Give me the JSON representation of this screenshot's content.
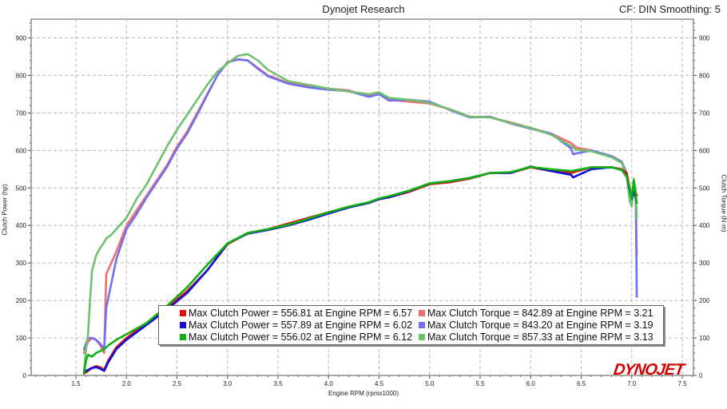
{
  "header": {
    "title": "Dynojet Research",
    "correction": "CF: DIN Smoothing: 5"
  },
  "logo_text": "DYNOJET",
  "chart_data": {
    "type": "line",
    "title": "Dynojet Research",
    "xlabel": "Engine RPM (rpmx1000)",
    "ylabel": "Clutch Power (hp)",
    "ylabel_right": "Clutch Torque (N·m)",
    "xlim": [
      1.0,
      7.65
    ],
    "ylim": [
      0,
      950
    ],
    "x_ticks": [
      "1.5",
      "2.0",
      "2.5",
      "3.0",
      "3.5",
      "4.0",
      "4.5",
      "5.0",
      "5.5",
      "6.0",
      "6.5",
      "7.0",
      "7.5"
    ],
    "y_ticks": [
      "0",
      "100",
      "200",
      "300",
      "400",
      "500",
      "600",
      "700",
      "800",
      "900"
    ],
    "y_ticks_right": [
      "0",
      "100",
      "200",
      "300",
      "400",
      "500",
      "600",
      "700",
      "800",
      "900"
    ],
    "grid": true,
    "legend_position": "bottom-center",
    "series": [
      {
        "name": "Max Clutch Power",
        "color": "#e01010",
        "kind": "power",
        "x": [
          1.58,
          1.62,
          1.66,
          1.7,
          1.74,
          1.78,
          1.82,
          1.9,
          2.0,
          2.2,
          2.4,
          2.6,
          2.8,
          3.0,
          3.2,
          3.4,
          3.6,
          3.8,
          4.0,
          4.2,
          4.4,
          4.5,
          4.6,
          4.8,
          5.0,
          5.2,
          5.4,
          5.6,
          5.8,
          6.0,
          6.2,
          6.4,
          6.6,
          6.8,
          6.9,
          6.95,
          6.98,
          7.0,
          7.02,
          7.05
        ],
        "y": [
          5,
          12,
          20,
          25,
          22,
          15,
          40,
          75,
          100,
          140,
          180,
          225,
          280,
          350,
          380,
          390,
          405,
          420,
          435,
          450,
          460,
          470,
          475,
          490,
          510,
          515,
          525,
          540,
          540,
          555,
          545,
          540,
          555,
          555,
          550,
          540,
          500,
          475,
          500,
          480
        ]
      },
      {
        "name": "Max Clutch Power",
        "color": "#1010d8",
        "kind": "power",
        "x": [
          1.58,
          1.62,
          1.66,
          1.7,
          1.74,
          1.78,
          1.82,
          1.9,
          2.0,
          2.2,
          2.4,
          2.6,
          2.8,
          3.0,
          3.2,
          3.4,
          3.6,
          3.8,
          4.0,
          4.2,
          4.4,
          4.5,
          4.6,
          4.8,
          5.0,
          5.2,
          5.4,
          5.6,
          5.8,
          6.0,
          6.2,
          6.4,
          6.42,
          6.6,
          6.8,
          6.9,
          6.95,
          6.98,
          7.0,
          7.02,
          7.05
        ],
        "y": [
          10,
          15,
          20,
          22,
          18,
          12,
          35,
          70,
          95,
          135,
          175,
          220,
          280,
          352,
          378,
          388,
          400,
          415,
          432,
          448,
          460,
          470,
          475,
          492,
          512,
          518,
          527,
          540,
          540,
          557,
          545,
          535,
          528,
          550,
          555,
          548,
          530,
          495,
          470,
          495,
          460
        ]
      },
      {
        "name": "Max Clutch Power",
        "color": "#10b010",
        "kind": "power",
        "x": [
          1.58,
          1.6,
          1.62,
          1.66,
          1.7,
          1.74,
          1.78,
          1.82,
          1.9,
          2.0,
          2.2,
          2.4,
          2.6,
          2.8,
          3.0,
          3.2,
          3.4,
          3.6,
          3.8,
          4.0,
          4.2,
          4.4,
          4.5,
          4.6,
          4.8,
          5.0,
          5.2,
          5.4,
          5.6,
          5.8,
          6.0,
          6.2,
          6.4,
          6.6,
          6.8,
          6.9,
          6.95,
          6.98,
          7.0,
          7.02,
          7.05
        ],
        "y": [
          5,
          40,
          55,
          50,
          60,
          65,
          70,
          80,
          95,
          110,
          140,
          185,
          235,
          295,
          352,
          380,
          390,
          402,
          418,
          435,
          450,
          462,
          472,
          478,
          493,
          512,
          518,
          527,
          540,
          542,
          556,
          550,
          545,
          555,
          555,
          548,
          530,
          500,
          470,
          520,
          460
        ]
      },
      {
        "name": "Max Clutch Torque",
        "color": "#f07070",
        "kind": "torque",
        "x": [
          1.58,
          1.62,
          1.66,
          1.7,
          1.74,
          1.78,
          1.8,
          1.9,
          2.0,
          2.1,
          2.2,
          2.3,
          2.4,
          2.5,
          2.6,
          2.7,
          2.8,
          2.9,
          3.0,
          3.1,
          3.2,
          3.3,
          3.4,
          3.6,
          3.8,
          4.0,
          4.2,
          4.4,
          4.5,
          4.6,
          4.8,
          5.0,
          5.2,
          5.4,
          5.6,
          5.8,
          6.0,
          6.2,
          6.4,
          6.45,
          6.6,
          6.8,
          6.9,
          6.95,
          6.98,
          7.0,
          7.02,
          7.04,
          7.05
        ],
        "y": [
          60,
          90,
          100,
          95,
          80,
          60,
          270,
          330,
          400,
          440,
          480,
          520,
          560,
          610,
          650,
          700,
          750,
          800,
          836,
          842,
          840,
          820,
          800,
          780,
          770,
          765,
          760,
          745,
          752,
          735,
          730,
          725,
          710,
          690,
          688,
          675,
          660,
          645,
          620,
          608,
          600,
          585,
          570,
          540,
          470,
          460,
          510,
          480,
          320
        ]
      },
      {
        "name": "Max Clutch Torque",
        "color": "#7070f0",
        "kind": "torque",
        "x": [
          1.58,
          1.62,
          1.66,
          1.7,
          1.74,
          1.78,
          1.8,
          1.9,
          2.0,
          2.1,
          2.2,
          2.3,
          2.4,
          2.5,
          2.6,
          2.7,
          2.8,
          2.9,
          3.0,
          3.1,
          3.2,
          3.3,
          3.4,
          3.6,
          3.8,
          4.0,
          4.2,
          4.4,
          4.5,
          4.6,
          4.8,
          5.0,
          5.2,
          5.4,
          5.6,
          5.8,
          6.0,
          6.2,
          6.4,
          6.42,
          6.45,
          6.6,
          6.8,
          6.9,
          6.95,
          6.98,
          7.0,
          7.02,
          7.04,
          7.05
        ],
        "y": [
          70,
          100,
          100,
          95,
          85,
          70,
          180,
          310,
          390,
          430,
          475,
          515,
          555,
          605,
          645,
          695,
          748,
          800,
          835,
          843,
          840,
          818,
          798,
          778,
          768,
          762,
          758,
          743,
          750,
          733,
          735,
          730,
          708,
          688,
          690,
          672,
          658,
          645,
          605,
          590,
          592,
          600,
          585,
          570,
          540,
          470,
          455,
          500,
          480,
          210
        ]
      },
      {
        "name": "Max Clutch Torque",
        "color": "#70c070",
        "kind": "torque",
        "x": [
          1.58,
          1.6,
          1.62,
          1.64,
          1.66,
          1.7,
          1.74,
          1.78,
          1.8,
          1.85,
          1.9,
          2.0,
          2.1,
          2.2,
          2.3,
          2.4,
          2.5,
          2.6,
          2.7,
          2.8,
          2.9,
          3.0,
          3.1,
          3.2,
          3.3,
          3.4,
          3.6,
          3.8,
          4.0,
          4.2,
          4.4,
          4.5,
          4.6,
          4.8,
          5.0,
          5.2,
          5.4,
          5.6,
          5.8,
          6.0,
          6.2,
          6.4,
          6.45,
          6.6,
          6.8,
          6.9,
          6.95,
          6.98,
          7.0,
          7.02,
          7.04,
          7.05
        ],
        "y": [
          10,
          70,
          110,
          200,
          280,
          320,
          340,
          355,
          365,
          375,
          390,
          420,
          470,
          510,
          560,
          610,
          655,
          695,
          735,
          775,
          810,
          832,
          852,
          857,
          840,
          815,
          785,
          775,
          765,
          757,
          750,
          755,
          740,
          735,
          727,
          710,
          690,
          688,
          673,
          660,
          642,
          612,
          602,
          598,
          582,
          567,
          535,
          465,
          450,
          525,
          490,
          420
        ]
      }
    ]
  },
  "legend": [
    {
      "color": "#e01010",
      "text": "Max Clutch Power = 556.81 at Engine RPM = 6.57"
    },
    {
      "color": "#1010d8",
      "text": "Max Clutch Power = 557.89 at Engine RPM = 6.02"
    },
    {
      "color": "#10b010",
      "text": "Max Clutch Power = 556.02 at Engine RPM = 6.12"
    },
    {
      "color": "#f07070",
      "text": "Max Clutch Torque = 842.89 at Engine RPM = 3.21"
    },
    {
      "color": "#7070f0",
      "text": "Max Clutch Torque = 843.20 at Engine RPM = 3.19"
    },
    {
      "color": "#70c070",
      "text": "Max Clutch Torque = 857.33 at Engine RPM = 3.13"
    }
  ]
}
